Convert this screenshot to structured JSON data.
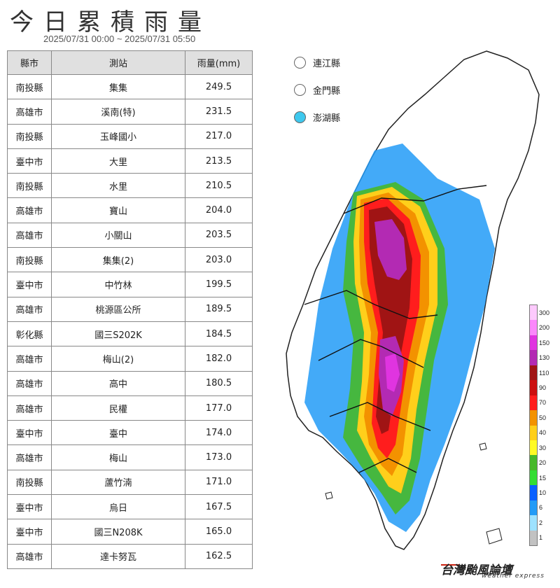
{
  "title": "今日累積雨量",
  "time_range": "2025/07/31 00:00 ~ 2025/07/31 05:50",
  "table": {
    "headers": [
      "縣市",
      "測站",
      "雨量(mm)"
    ],
    "rows": [
      [
        "南投縣",
        "集集",
        "249.5"
      ],
      [
        "高雄市",
        "溪南(特)",
        "231.5"
      ],
      [
        "南投縣",
        "玉峰國小",
        "217.0"
      ],
      [
        "臺中市",
        "大里",
        "213.5"
      ],
      [
        "南投縣",
        "水里",
        "210.5"
      ],
      [
        "高雄市",
        "寶山",
        "204.0"
      ],
      [
        "高雄市",
        "小關山",
        "203.5"
      ],
      [
        "南投縣",
        "集集(2)",
        "203.0"
      ],
      [
        "臺中市",
        "中竹林",
        "199.5"
      ],
      [
        "高雄市",
        "桃源區公所",
        "189.5"
      ],
      [
        "彰化縣",
        "國三S202K",
        "184.5"
      ],
      [
        "高雄市",
        "梅山(2)",
        "182.0"
      ],
      [
        "高雄市",
        "高中",
        "180.5"
      ],
      [
        "高雄市",
        "民權",
        "177.0"
      ],
      [
        "臺中市",
        "臺中",
        "174.0"
      ],
      [
        "高雄市",
        "梅山",
        "173.0"
      ],
      [
        "南投縣",
        "蘆竹湳",
        "171.0"
      ],
      [
        "臺中市",
        "烏日",
        "167.5"
      ],
      [
        "臺中市",
        "國三N208K",
        "165.0"
      ],
      [
        "高雄市",
        "達卡努瓦",
        "162.5"
      ]
    ]
  },
  "islands_legend": [
    {
      "name": "連江縣",
      "color": "#ffffff"
    },
    {
      "name": "金門縣",
      "color": "#ffffff"
    },
    {
      "name": "澎湖縣",
      "color": "#3ec8ee"
    }
  ],
  "color_scale": {
    "labels": [
      "300",
      "200",
      "150",
      "130",
      "110",
      "90",
      "70",
      "50",
      "40",
      "30",
      "20",
      "15",
      "10",
      "6",
      "2",
      "1"
    ],
    "colors": [
      "#fdcafd",
      "#fb88fb",
      "#e034e0",
      "#b32ab3",
      "#a01414",
      "#cc0f0f",
      "#ff1d1d",
      "#f39200",
      "#ffcf1b",
      "#fffa25",
      "#47b82a",
      "#33dd33",
      "#0b60ff",
      "#229bf7",
      "#9ee2ff",
      "#c2c2c2"
    ]
  },
  "brand": {
    "name": "台灣颱風論壇",
    "sub": "weather express"
  }
}
